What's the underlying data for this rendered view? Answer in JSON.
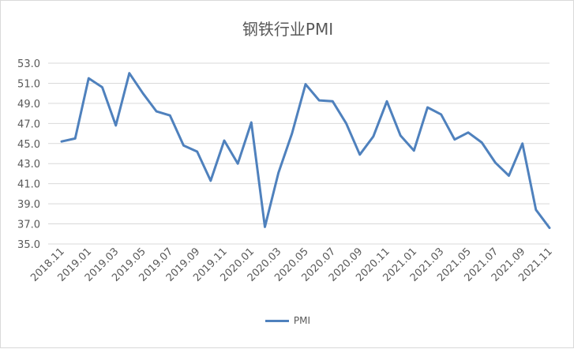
{
  "chart_data": {
    "type": "line",
    "title": "钢铁行业PMI",
    "xlabel": "",
    "ylabel": "",
    "ylim": [
      35.0,
      53.0
    ],
    "yticks": [
      "35.0",
      "37.0",
      "39.0",
      "41.0",
      "43.0",
      "45.0",
      "47.0",
      "49.0",
      "51.0",
      "53.0"
    ],
    "grid": true,
    "legend_position": "bottom",
    "x": [
      "2018.11",
      "2018.12",
      "2019.01",
      "2019.02",
      "2019.03",
      "2019.04",
      "2019.05",
      "2019.06",
      "2019.07",
      "2019.08",
      "2019.09",
      "2019.10",
      "2019.11",
      "2019.12",
      "2020.01",
      "2020.02",
      "2020.03",
      "2020.04",
      "2020.05",
      "2020.06",
      "2020.07",
      "2020.08",
      "2020.09",
      "2020.10",
      "2020.11",
      "2020.12",
      "2021.01",
      "2021.02",
      "2021.03",
      "2021.04",
      "2021.05",
      "2021.06",
      "2021.07",
      "2021.08",
      "2021.09",
      "2021.10",
      "2021.11"
    ],
    "xtick_labels": [
      "2018.11",
      "2019.01",
      "2019.03",
      "2019.05",
      "2019.07",
      "2019.09",
      "2019.11",
      "2020.01",
      "2020.03",
      "2020.05",
      "2020.07",
      "2020.09",
      "2020.11",
      "2021.01",
      "2021.03",
      "2021.05",
      "2021.07",
      "2021.09",
      "2021.11"
    ],
    "series": [
      {
        "name": "PMI",
        "color": "#4f81bd",
        "values": [
          45.2,
          45.5,
          51.5,
          50.6,
          46.8,
          52.0,
          50.0,
          48.2,
          47.8,
          44.8,
          44.2,
          41.3,
          45.3,
          43.0,
          47.1,
          36.7,
          42.1,
          46.0,
          50.9,
          49.3,
          49.2,
          47.0,
          43.9,
          45.7,
          49.2,
          45.8,
          44.3,
          48.6,
          47.9,
          45.4,
          46.1,
          45.1,
          43.1,
          41.8,
          45.0,
          38.4,
          36.6
        ]
      }
    ]
  }
}
